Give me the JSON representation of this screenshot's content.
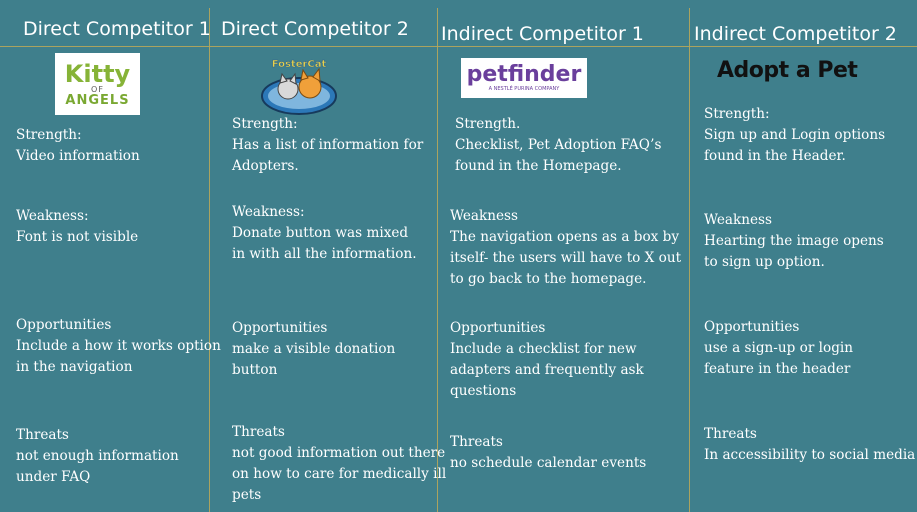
{
  "columns": [
    {
      "header": "Direct Competitor 1",
      "logo_text": [
        "Kitty",
        "OF",
        "ANGELS"
      ],
      "logo_icon": "kitty-of-angels-logo",
      "strength": {
        "label": "Strength:",
        "text": "Video information"
      },
      "weakness": {
        "label": "Weakness:",
        "text": "Font is not visible"
      },
      "opportunities": {
        "label": "Opportunities",
        "text": "Include a how it works option\nin the navigation"
      },
      "threats": {
        "label": "Threats",
        "text": " not enough information\nunder FAQ"
      }
    },
    {
      "header": "Direct Competitor 2",
      "logo_text": [
        "FosterCat"
      ],
      "logo_icon": "fostercat-logo",
      "strength": {
        "label": "Strength:",
        "text": "Has a list of  information for\nAdopters."
      },
      "weakness": {
        "label": "Weakness:",
        "text": "Donate button was mixed\nin with all the information."
      },
      "opportunities": {
        "label": "Opportunities",
        "text": "make a visible donation\nbutton"
      },
      "threats": {
        "label": "Threats",
        "text": " not good information out there\non how to care for medically ill\npets"
      }
    },
    {
      "header": "Indirect Competitor 1",
      "logo_text": [
        "petfinder",
        "A NESTLÉ PURINA COMPANY"
      ],
      "logo_icon": "petfinder-logo",
      "strength": {
        "label": "Strength.",
        "text": "Checklist, Pet Adoption FAQ’s\nfound in the Homepage."
      },
      "weakness": {
        "label": "Weakness",
        "text": "The navigation opens as a box by\nitself- the users will have to X out\nto go back to the homepage."
      },
      "opportunities": {
        "label": "Opportunities",
        "text": "Include a checklist for new\nadapters and frequently ask\nquestions"
      },
      "threats": {
        "label": "Threats",
        "text": " no schedule calendar events"
      }
    },
    {
      "header": "Indirect Competitor 2",
      "logo_text": [
        "Adopt a Pet"
      ],
      "logo_icon": "adopt-a-pet-logo",
      "strength": {
        "label": "Strength:",
        "text": "Sign up and Login options\nfound in the Header."
      },
      "weakness": {
        "label": "Weakness",
        "text": "Hearting the image opens\nto sign up option."
      },
      "opportunities": {
        "label": "Opportunities",
        "text": "use a sign-up or login\nfeature in the header"
      },
      "threats": {
        "label": "Threats",
        "text": "In accessibility to social media"
      }
    }
  ],
  "colors": {
    "background": "#3f7f8c",
    "divider": "#b7a75a",
    "text": "#ffffff"
  }
}
